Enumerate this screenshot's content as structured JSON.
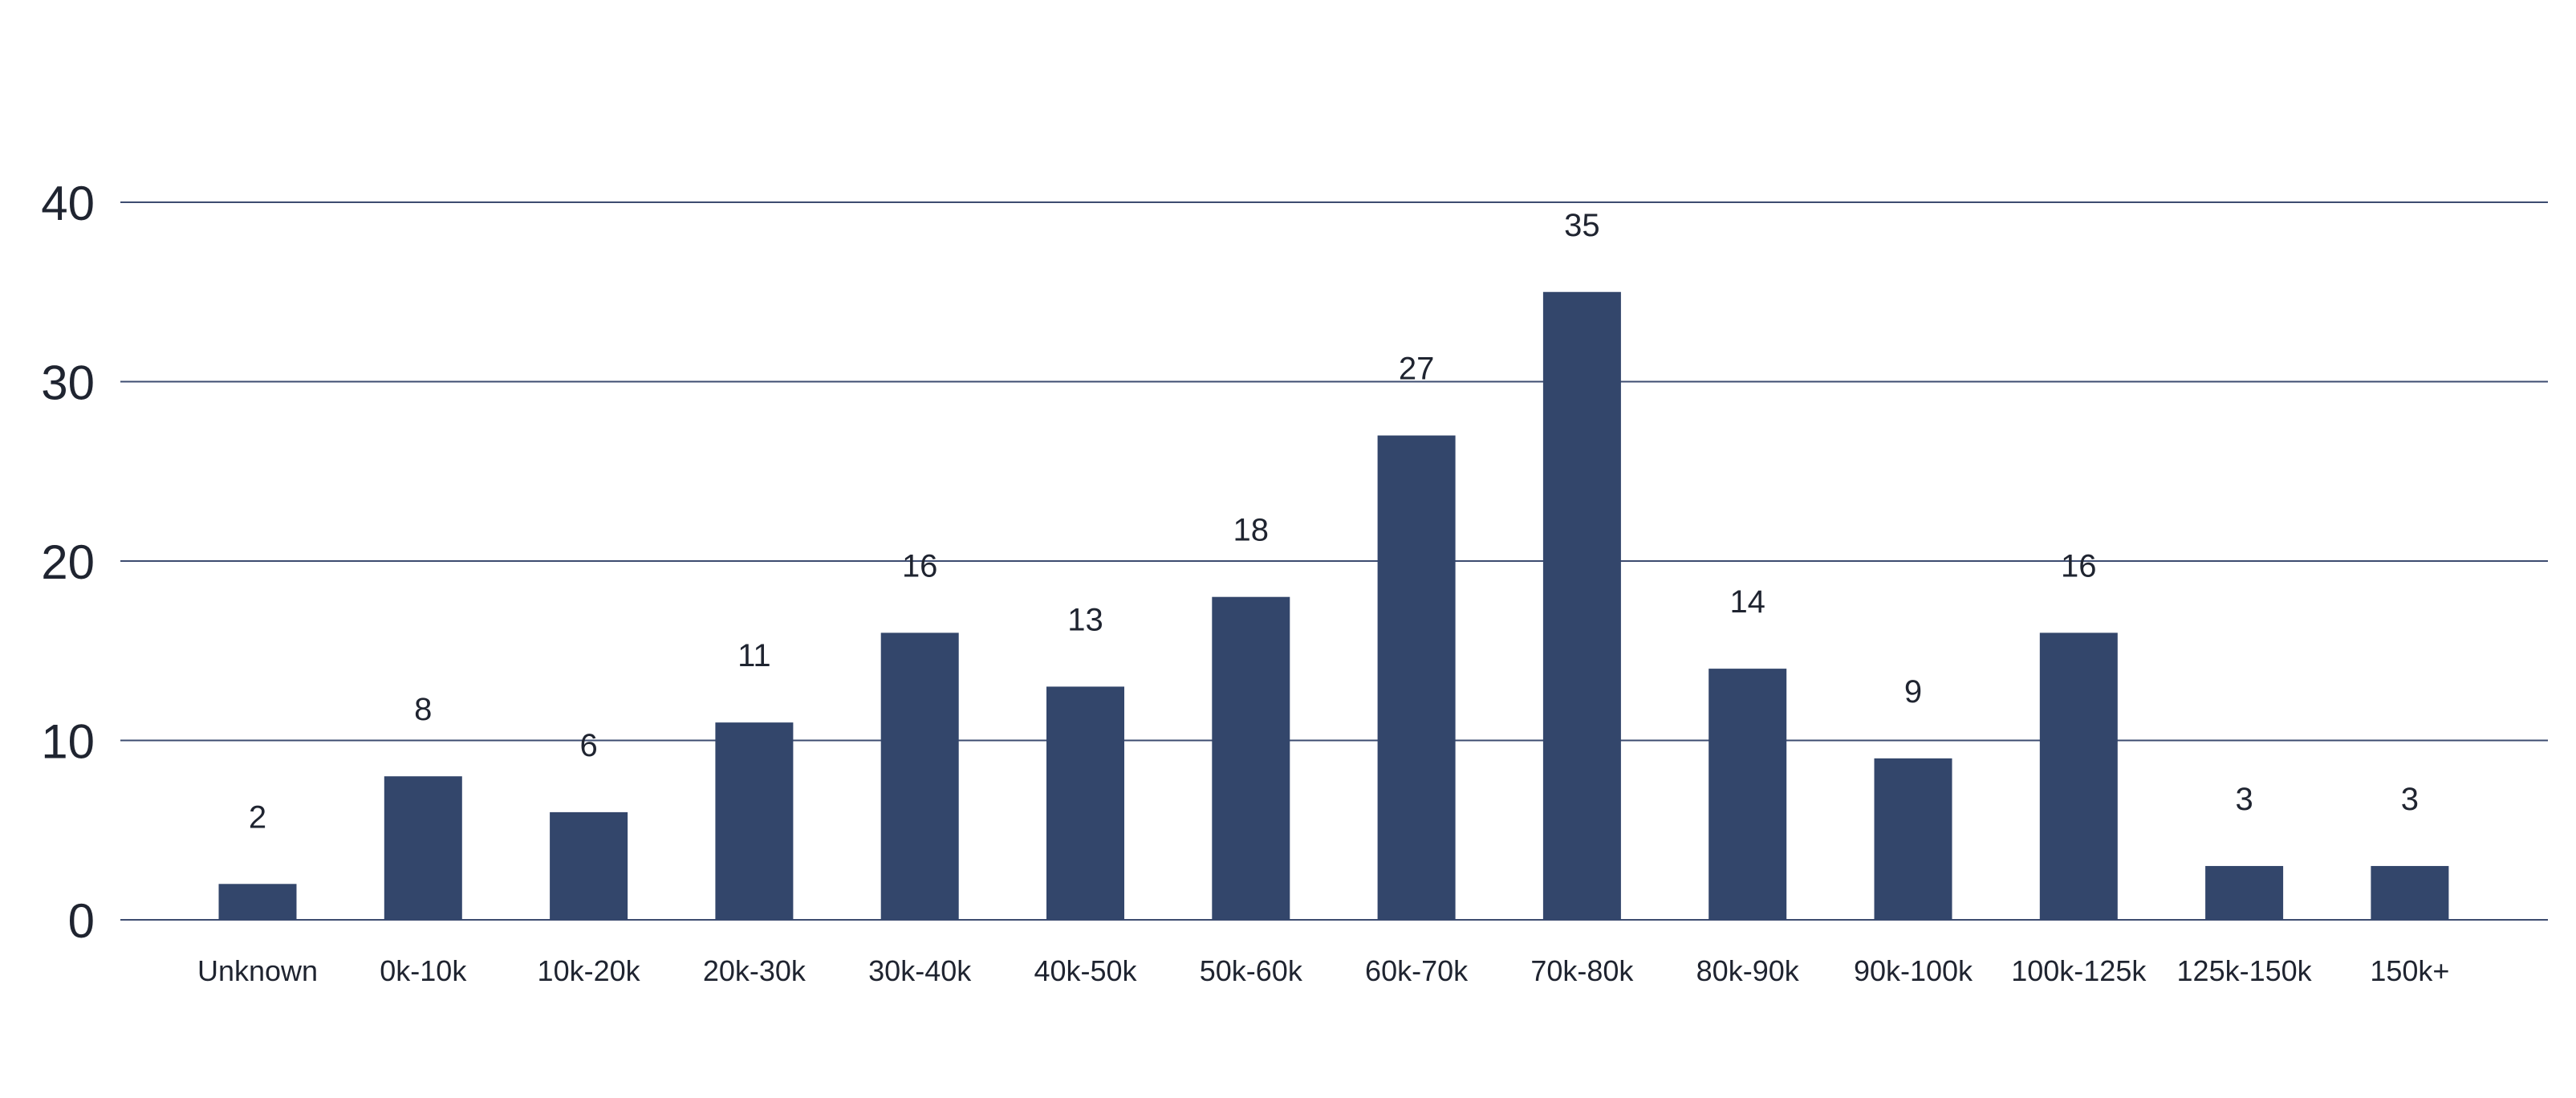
{
  "chart_data": {
    "type": "bar",
    "title": "",
    "xlabel": "",
    "ylabel": "",
    "categories": [
      "Unknown",
      "0k-10k",
      "10k-20k",
      "20k-30k",
      "30k-40k",
      "40k-50k",
      "50k-60k",
      "60k-70k",
      "70k-80k",
      "80k-90k",
      "90k-100k",
      "100k-125k",
      "125k-150k",
      "150k+"
    ],
    "values": [
      2,
      8,
      6,
      11,
      16,
      13,
      18,
      27,
      35,
      14,
      9,
      16,
      3,
      3
    ],
    "yticks": [
      0,
      10,
      20,
      30,
      40
    ],
    "ylim": [
      0,
      40
    ],
    "grid": true,
    "legend": "none",
    "bar_color": "#33466b",
    "grid_color": "#3d4c70"
  }
}
